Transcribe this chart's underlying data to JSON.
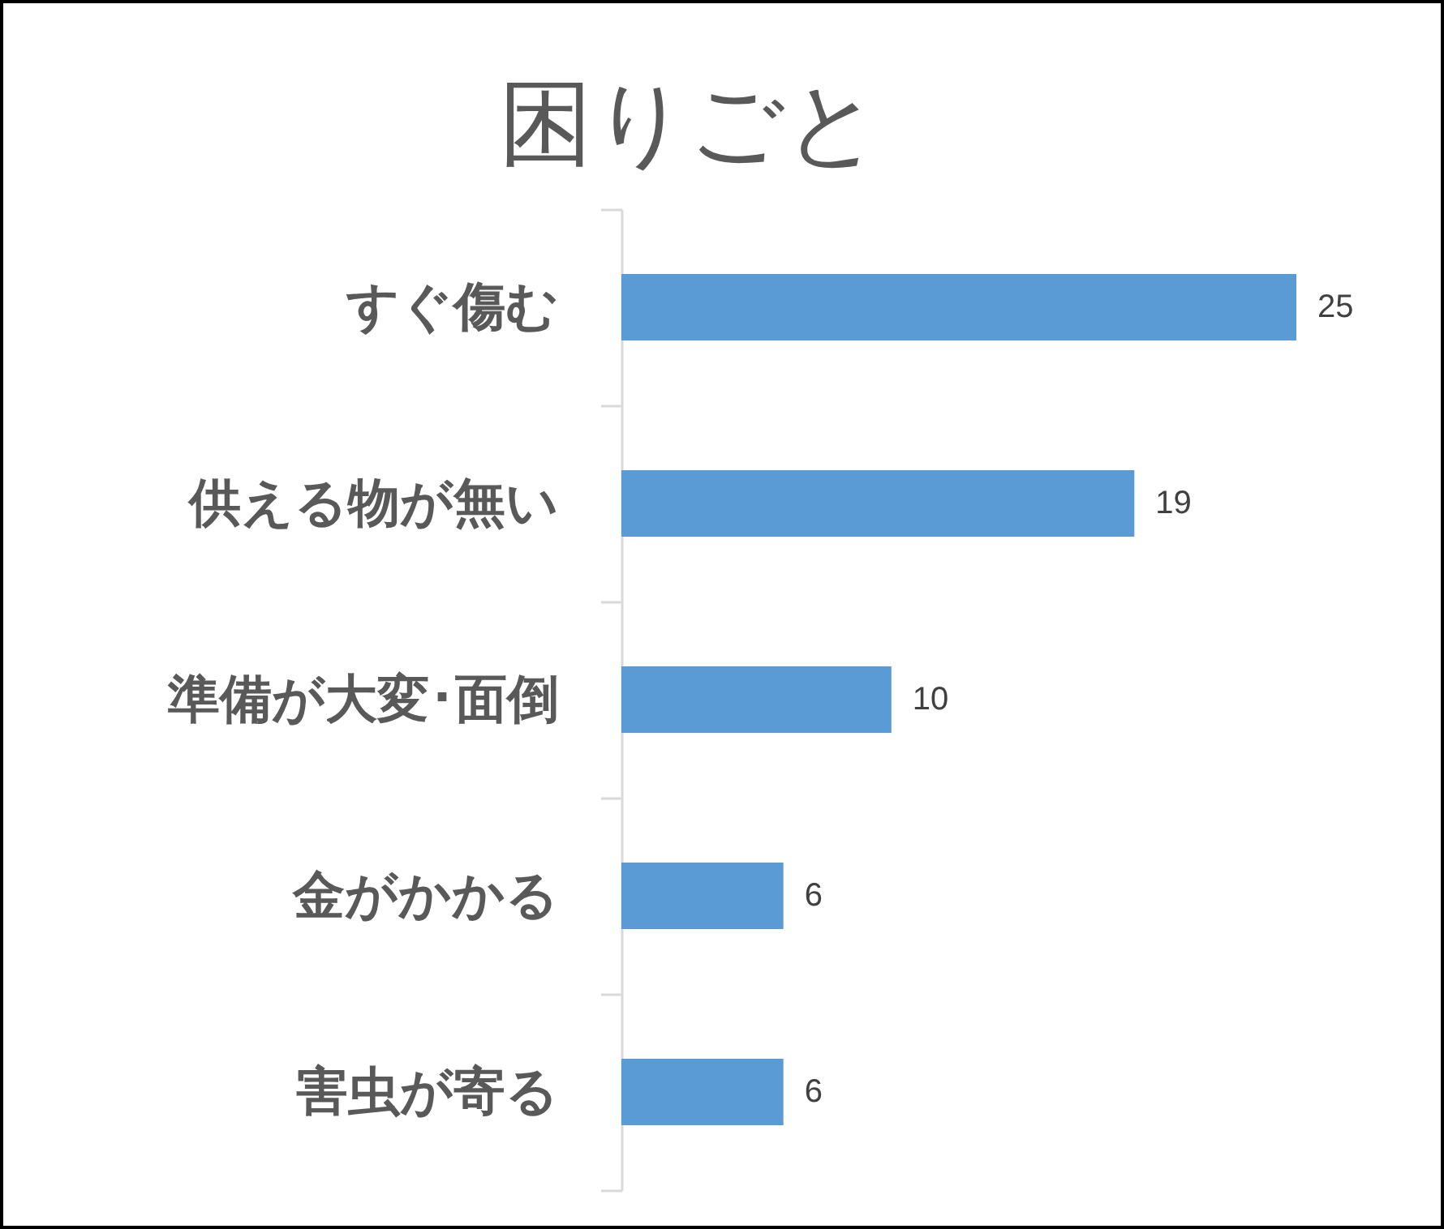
{
  "chart_data": {
    "type": "bar",
    "orientation": "horizontal",
    "title": "困りごと",
    "categories": [
      "すぐ傷む",
      "供える物が無い",
      "準備が大変･面倒",
      "金がかかる",
      "害虫が寄る"
    ],
    "values": [
      25,
      19,
      10,
      6,
      6
    ],
    "color": "#5b9bd5",
    "data_labels": true
  }
}
